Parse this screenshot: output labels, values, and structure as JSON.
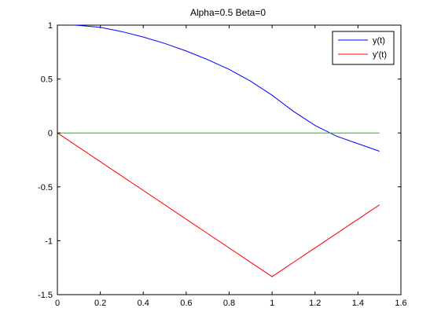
{
  "chart_data": {
    "type": "line",
    "title": "Alpha=0.5   Beta=0",
    "xlabel": "",
    "ylabel": "",
    "xlim": [
      0,
      1.6
    ],
    "ylim": [
      -1.5,
      1
    ],
    "grid": false,
    "legend_placement": "top-right",
    "x_ticks": [
      {
        "value": 0,
        "label": "0"
      },
      {
        "value": 0.2,
        "label": "0.2"
      },
      {
        "value": 0.4,
        "label": "0.4"
      },
      {
        "value": 0.6,
        "label": "0.6"
      },
      {
        "value": 0.8,
        "label": "0.8"
      },
      {
        "value": 1.0,
        "label": "1"
      },
      {
        "value": 1.2,
        "label": "1.2"
      },
      {
        "value": 1.4,
        "label": "1.4"
      },
      {
        "value": 1.6,
        "label": "1.6"
      }
    ],
    "y_ticks": [
      {
        "value": 1,
        "label": "1"
      },
      {
        "value": 0.5,
        "label": "0.5"
      },
      {
        "value": 0,
        "label": "0"
      },
      {
        "value": -0.5,
        "label": "-0.5"
      },
      {
        "value": -1,
        "label": "-1"
      },
      {
        "value": -1.5,
        "label": "-1.5"
      }
    ],
    "series": [
      {
        "name": "y(t)",
        "color": "#0000ff",
        "in_legend": true,
        "x": [
          0.08,
          0.1,
          0.2,
          0.3,
          0.4,
          0.5,
          0.6,
          0.7,
          0.8,
          0.9,
          1.0,
          1.1,
          1.2,
          1.3,
          1.4,
          1.5
        ],
        "y": [
          1.0,
          0.997,
          0.98,
          0.94,
          0.89,
          0.83,
          0.76,
          0.68,
          0.59,
          0.48,
          0.35,
          0.2,
          0.07,
          -0.03,
          -0.1,
          -0.17
        ]
      },
      {
        "name": "y'(t)",
        "color": "#ff0000",
        "in_legend": true,
        "x": [
          0,
          1.0,
          1.5
        ],
        "y": [
          0,
          -1.333,
          -0.667
        ]
      },
      {
        "name": "",
        "color": "#00cc00",
        "in_legend": false,
        "x": [
          0,
          1.5
        ],
        "y": [
          0,
          0
        ]
      }
    ]
  }
}
